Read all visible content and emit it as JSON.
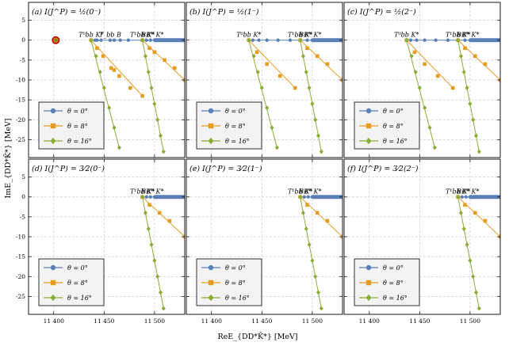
{
  "chart_data": {
    "type": "scatter",
    "xlabel": "ReE_{DD*K̄*} [MeV]",
    "ylabel": "ImE_{DD*K̄*} [MeV]",
    "xlim": [
      11375,
      11530
    ],
    "ylim": [
      -29.5,
      9.5
    ],
    "x_ticks": [
      11400,
      11450,
      11500
    ],
    "x_tick_labels": [
      "11 400",
      "11 450",
      "11 500"
    ],
    "y_ticks": [
      5,
      0,
      -5,
      -10,
      -15,
      -20,
      -25
    ],
    "y_tick_labels": [
      "5",
      "0",
      "-5",
      "-10",
      "-15",
      "-20",
      "-25"
    ],
    "grid": true,
    "legend": {
      "placement": "bottom-left",
      "entries": [
        {
          "label": "θ = 0°",
          "color": "#5b80b8",
          "marker": "circle"
        },
        {
          "label": "θ = 8°",
          "color": "#e49c22",
          "marker": "square"
        },
        {
          "label": "θ = 16°",
          "color": "#8cac38",
          "marker": "diamond"
        }
      ]
    },
    "panels": [
      {
        "title": "(a) I(J^P) = ½(0⁻)",
        "thresholds": [
          {
            "label": "T⁰bb K*",
            "x": 11437
          },
          {
            "label": "T_bb B",
            "x": 11456
          },
          {
            "label": "T¹bb K*",
            "x": 11488
          },
          {
            "label": "BB* K*",
            "x": 11498
          }
        ],
        "bound_state": {
          "x": 11402,
          "y": 0
        },
        "series": [
          {
            "name": "θ = 0°",
            "points": [
              [
                11437,
                0
              ],
              [
                11441,
                0
              ],
              [
                11443,
                0
              ],
              [
                11447,
                0
              ],
              [
                11456,
                0
              ],
              [
                11460,
                0
              ],
              [
                11466,
                0
              ],
              [
                11474,
                0
              ],
              [
                11488,
                0
              ],
              [
                11492,
                0
              ],
              [
                11496,
                0
              ],
              [
                11500,
                0
              ],
              [
                11515,
                0
              ],
              [
                11530,
                0
              ]
            ]
          },
          {
            "name": "θ = 8°",
            "points": [
              [
                11437,
                0
              ],
              [
                11443,
                -2
              ],
              [
                11449,
                -4
              ],
              [
                11457,
                -7
              ],
              [
                11460,
                -7.5
              ],
              [
                11465,
                -9
              ],
              [
                11476,
                -12
              ],
              [
                11488,
                -14
              ],
              [
                11488,
                0
              ],
              [
                11495,
                -2
              ],
              [
                11500,
                -3
              ],
              [
                11510,
                -5
              ],
              [
                11520,
                -7
              ],
              [
                11530,
                -10
              ]
            ]
          },
          {
            "name": "θ = 16°",
            "points": [
              [
                11437,
                0
              ],
              [
                11442,
                -4
              ],
              [
                11446,
                -8
              ],
              [
                11450,
                -12
              ],
              [
                11455,
                -17
              ],
              [
                11460,
                -22
              ],
              [
                11465,
                -27
              ],
              [
                11488,
                0
              ],
              [
                11491,
                -4
              ],
              [
                11494,
                -8
              ],
              [
                11497,
                -12
              ],
              [
                11500,
                -16
              ],
              [
                11503,
                -20
              ],
              [
                11506,
                -24
              ],
              [
                11509,
                -28
              ]
            ]
          }
        ]
      },
      {
        "title": "(b) I(J^P) = ½(1⁻)",
        "thresholds": [
          {
            "label": "T⁰bb K*",
            "x": 11437
          },
          {
            "label": "T¹bb K*",
            "x": 11488
          },
          {
            "label": "BB* K*",
            "x": 11498
          }
        ],
        "series": [
          {
            "name": "θ = 0°",
            "points": [
              [
                11437,
                0
              ],
              [
                11441,
                0
              ],
              [
                11447,
                0
              ],
              [
                11455,
                0
              ],
              [
                11466,
                0
              ],
              [
                11478,
                0
              ],
              [
                11488,
                0
              ],
              [
                11495,
                0
              ],
              [
                11500,
                0
              ],
              [
                11515,
                0
              ],
              [
                11530,
                0
              ]
            ]
          },
          {
            "name": "θ = 8°",
            "points": [
              [
                11437,
                0
              ],
              [
                11445,
                -3
              ],
              [
                11455,
                -6
              ],
              [
                11468,
                -9
              ],
              [
                11483,
                -12
              ],
              [
                11488,
                0
              ],
              [
                11495,
                -2
              ],
              [
                11505,
                -4
              ],
              [
                11515,
                -6
              ],
              [
                11530,
                -10
              ]
            ]
          },
          {
            "name": "θ = 16°",
            "points": [
              [
                11437,
                0
              ],
              [
                11442,
                -4
              ],
              [
                11446,
                -8
              ],
              [
                11450,
                -12
              ],
              [
                11455,
                -17
              ],
              [
                11460,
                -22
              ],
              [
                11465,
                -27
              ],
              [
                11488,
                0
              ],
              [
                11491,
                -4
              ],
              [
                11494,
                -8
              ],
              [
                11497,
                -12
              ],
              [
                11500,
                -16
              ],
              [
                11503,
                -20
              ],
              [
                11506,
                -24
              ],
              [
                11509,
                -28
              ]
            ]
          }
        ]
      },
      {
        "title": "(c) I(J^P) = ½(2⁻)",
        "thresholds": [
          {
            "label": "T⁰bb K*",
            "x": 11437
          },
          {
            "label": "T¹bb K*",
            "x": 11488
          },
          {
            "label": "BB* K*",
            "x": 11498
          }
        ],
        "series": [
          {
            "name": "θ = 0°",
            "points": [
              [
                11437,
                0
              ],
              [
                11441,
                0
              ],
              [
                11447,
                0
              ],
              [
                11455,
                0
              ],
              [
                11466,
                0
              ],
              [
                11478,
                0
              ],
              [
                11488,
                0
              ],
              [
                11495,
                0
              ],
              [
                11500,
                0
              ],
              [
                11515,
                0
              ],
              [
                11530,
                0
              ]
            ]
          },
          {
            "name": "θ = 8°",
            "points": [
              [
                11437,
                0
              ],
              [
                11445,
                -3
              ],
              [
                11455,
                -6
              ],
              [
                11468,
                -9
              ],
              [
                11483,
                -12
              ],
              [
                11488,
                0
              ],
              [
                11495,
                -2
              ],
              [
                11505,
                -4
              ],
              [
                11515,
                -6
              ],
              [
                11530,
                -10
              ]
            ]
          },
          {
            "name": "θ = 16°",
            "points": [
              [
                11437,
                0
              ],
              [
                11442,
                -4
              ],
              [
                11446,
                -8
              ],
              [
                11450,
                -12
              ],
              [
                11455,
                -17
              ],
              [
                11460,
                -22
              ],
              [
                11465,
                -27
              ],
              [
                11488,
                0
              ],
              [
                11491,
                -4
              ],
              [
                11494,
                -8
              ],
              [
                11497,
                -12
              ],
              [
                11500,
                -16
              ],
              [
                11503,
                -20
              ],
              [
                11506,
                -24
              ],
              [
                11509,
                -28
              ]
            ]
          }
        ]
      },
      {
        "title": "(d) I(J^P) = 3⁄2(0⁻)",
        "thresholds": [
          {
            "label": "T¹bb K*",
            "x": 11488
          },
          {
            "label": "BB* K*",
            "x": 11498
          }
        ],
        "series": [
          {
            "name": "θ = 0°",
            "points": [
              [
                11488,
                0
              ],
              [
                11492,
                0
              ],
              [
                11496,
                0
              ],
              [
                11500,
                0
              ],
              [
                11506,
                0
              ],
              [
                11515,
                0
              ],
              [
                11530,
                0
              ]
            ]
          },
          {
            "name": "θ = 8°",
            "points": [
              [
                11488,
                0
              ],
              [
                11495,
                -2
              ],
              [
                11505,
                -4
              ],
              [
                11515,
                -6
              ],
              [
                11530,
                -10
              ]
            ]
          },
          {
            "name": "θ = 16°",
            "points": [
              [
                11488,
                0
              ],
              [
                11491,
                -4
              ],
              [
                11494,
                -8
              ],
              [
                11497,
                -12
              ],
              [
                11500,
                -16
              ],
              [
                11503,
                -20
              ],
              [
                11506,
                -24
              ],
              [
                11509,
                -28
              ]
            ]
          }
        ]
      },
      {
        "title": "(e) I(J^P) = 3⁄2(1⁻)",
        "thresholds": [
          {
            "label": "T¹bb K*",
            "x": 11488
          },
          {
            "label": "BB* K*",
            "x": 11498
          }
        ],
        "series": [
          {
            "name": "θ = 0°",
            "points": [
              [
                11488,
                0
              ],
              [
                11492,
                0
              ],
              [
                11496,
                0
              ],
              [
                11500,
                0
              ],
              [
                11506,
                0
              ],
              [
                11515,
                0
              ],
              [
                11530,
                0
              ]
            ]
          },
          {
            "name": "θ = 8°",
            "points": [
              [
                11488,
                0
              ],
              [
                11495,
                -2
              ],
              [
                11505,
                -4
              ],
              [
                11515,
                -6
              ],
              [
                11530,
                -10
              ]
            ]
          },
          {
            "name": "θ = 16°",
            "points": [
              [
                11488,
                0
              ],
              [
                11491,
                -4
              ],
              [
                11494,
                -8
              ],
              [
                11497,
                -12
              ],
              [
                11500,
                -16
              ],
              [
                11503,
                -20
              ],
              [
                11506,
                -24
              ],
              [
                11509,
                -28
              ]
            ]
          }
        ]
      },
      {
        "title": "(f) I(J^P) = 3⁄2(2⁻)",
        "thresholds": [
          {
            "label": "T¹bb K*",
            "x": 11488
          },
          {
            "label": "BB* K*",
            "x": 11498
          }
        ],
        "series": [
          {
            "name": "θ = 0°",
            "points": [
              [
                11488,
                0
              ],
              [
                11492,
                0
              ],
              [
                11496,
                0
              ],
              [
                11500,
                0
              ],
              [
                11506,
                0
              ],
              [
                11515,
                0
              ],
              [
                11530,
                0
              ]
            ]
          },
          {
            "name": "θ = 8°",
            "points": [
              [
                11488,
                0
              ],
              [
                11495,
                -2
              ],
              [
                11505,
                -4
              ],
              [
                11515,
                -6
              ],
              [
                11530,
                -10
              ]
            ]
          },
          {
            "name": "θ = 16°",
            "points": [
              [
                11488,
                0
              ],
              [
                11491,
                -4
              ],
              [
                11494,
                -8
              ],
              [
                11497,
                -12
              ],
              [
                11500,
                -16
              ],
              [
                11503,
                -20
              ],
              [
                11506,
                -24
              ],
              [
                11509,
                -28
              ]
            ]
          }
        ]
      }
    ]
  }
}
